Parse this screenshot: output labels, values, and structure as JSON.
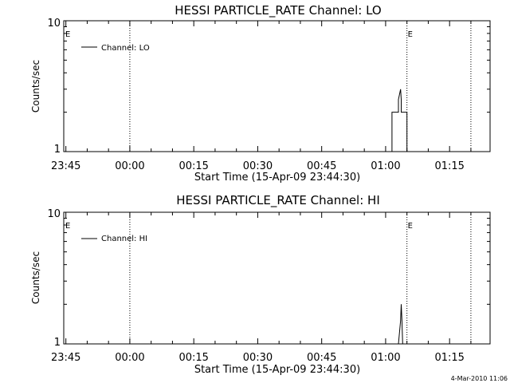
{
  "chart_data": [
    {
      "type": "line",
      "title": "HESSI PARTICLE_RATE Channel: LO",
      "xlabel": "Start Time (15-Apr-09 23:44:30)",
      "ylabel": "Counts/sec",
      "yscale": "log",
      "ylim": [
        1,
        10
      ],
      "xlim": [
        "23:44:30",
        "01:24:30"
      ],
      "x_ticks": [
        "23:45",
        "00:00",
        "00:15",
        "00:30",
        "00:45",
        "01:00",
        "01:15"
      ],
      "y_ticks": [
        "1",
        "10"
      ],
      "grid": false,
      "legend_position": "top-left",
      "markers": [
        {
          "time": "00:00",
          "label": "",
          "style": "dotted"
        },
        {
          "time": "01:05",
          "label": "E",
          "style": "dotted"
        },
        {
          "time": "01:20",
          "label": "",
          "style": "dotted"
        }
      ],
      "left_edge_label": "E",
      "series": [
        {
          "name": "Channel: LO",
          "points": [
            [
              "01:01:30",
              1
            ],
            [
              "01:01:30",
              2
            ],
            [
              "01:03:00",
              2
            ],
            [
              "01:03:00",
              2.5
            ],
            [
              "01:03:30",
              3
            ],
            [
              "01:03:40",
              2.5
            ],
            [
              "01:03:40",
              2
            ],
            [
              "01:05:00",
              2
            ],
            [
              "01:05:00",
              1
            ]
          ]
        }
      ]
    },
    {
      "type": "line",
      "title": "HESSI PARTICLE_RATE Channel: HI",
      "xlabel": "Start Time (15-Apr-09 23:44:30)",
      "ylabel": "Counts/sec",
      "yscale": "log",
      "ylim": [
        1,
        10
      ],
      "xlim": [
        "23:44:30",
        "01:24:30"
      ],
      "x_ticks": [
        "23:45",
        "00:00",
        "00:15",
        "00:30",
        "00:45",
        "01:00",
        "01:15"
      ],
      "y_ticks": [
        "1",
        "10"
      ],
      "grid": false,
      "legend_position": "top-left",
      "markers": [
        {
          "time": "00:00",
          "label": "",
          "style": "dotted"
        },
        {
          "time": "01:05",
          "label": "E",
          "style": "dotted"
        },
        {
          "time": "01:20",
          "label": "",
          "style": "dotted"
        }
      ],
      "left_edge_label": "E",
      "series": [
        {
          "name": "Channel: HI",
          "points": [
            [
              "01:03:00",
              1
            ],
            [
              "01:03:30",
              1.5
            ],
            [
              "01:03:40",
              2
            ],
            [
              "01:03:50",
              1.5
            ],
            [
              "01:04:00",
              1
            ]
          ]
        }
      ]
    }
  ],
  "footer": {
    "timestamp": "4-Mar-2010 11:06"
  }
}
